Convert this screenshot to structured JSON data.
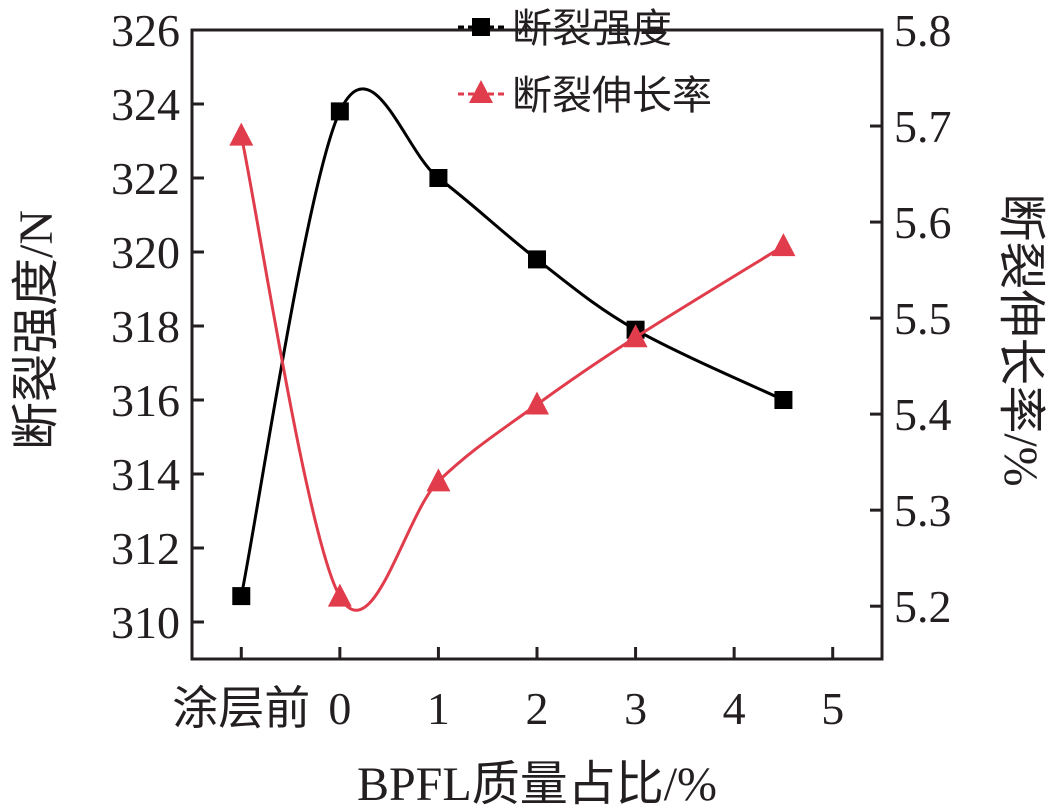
{
  "chart_data": {
    "type": "line",
    "xlabel": "BPFL质量占比/%",
    "x_tick_labels": [
      "涂层前",
      "0",
      "1",
      "2",
      "3",
      "4",
      "5"
    ],
    "x_tick_values": [
      -1,
      0,
      1,
      2,
      3,
      4,
      5
    ],
    "xlim": [
      -1.5,
      5.5
    ],
    "left_axis": {
      "label": "断裂强度/N",
      "ylim": [
        309,
        326
      ],
      "ticks": [
        310,
        312,
        314,
        316,
        318,
        320,
        322,
        324,
        326
      ]
    },
    "right_axis": {
      "label": "断裂伸长率/%",
      "ylim": [
        5.145,
        5.8
      ],
      "ticks": [
        5.2,
        5.3,
        5.4,
        5.5,
        5.6,
        5.7,
        5.8
      ]
    },
    "series": [
      {
        "name": "断裂强度",
        "axis": "left",
        "marker": "square",
        "color": "#000000",
        "x": [
          -1,
          0,
          1,
          2,
          3,
          4.5
        ],
        "y": [
          310.7,
          323.8,
          322.0,
          319.8,
          317.9,
          316.0
        ]
      },
      {
        "name": "断裂伸长率",
        "axis": "right",
        "marker": "triangle",
        "color": "#e03c4b",
        "x": [
          -1,
          0,
          1,
          2,
          3,
          4.5
        ],
        "y": [
          5.69,
          5.21,
          5.33,
          5.41,
          5.48,
          5.575
        ]
      }
    ],
    "legend_position": "top",
    "grid": false
  }
}
